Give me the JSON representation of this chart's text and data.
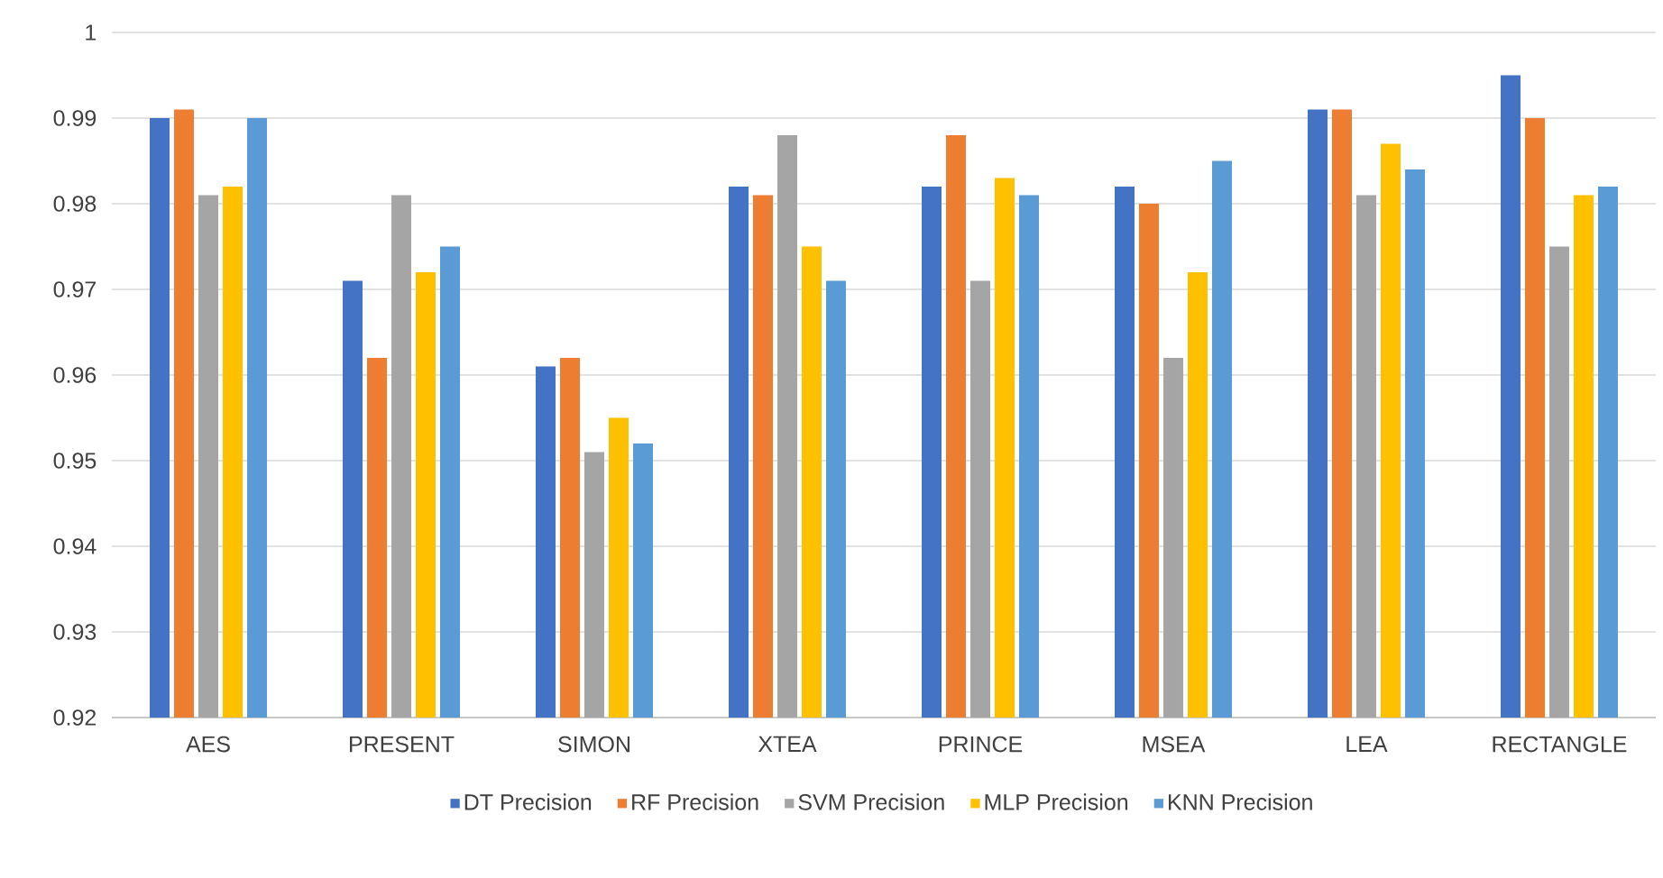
{
  "chart_data": {
    "type": "bar",
    "categories": [
      "AES",
      "PRESENT",
      "SIMON",
      "XTEA",
      "PRINCE",
      "MSEA",
      "LEA",
      "RECTANGLE"
    ],
    "series": [
      {
        "name": "DT Precision",
        "color": "#4472c4",
        "values": [
          0.99,
          0.971,
          0.961,
          0.982,
          0.982,
          0.982,
          0.991,
          0.995
        ]
      },
      {
        "name": "RF Precision",
        "color": "#ed7d31",
        "values": [
          0.991,
          0.962,
          0.962,
          0.981,
          0.988,
          0.98,
          0.991,
          0.99
        ]
      },
      {
        "name": "SVM Precision",
        "color": "#a5a5a5",
        "values": [
          0.981,
          0.981,
          0.951,
          0.988,
          0.971,
          0.962,
          0.981,
          0.975
        ]
      },
      {
        "name": "MLP Precision",
        "color": "#ffc000",
        "values": [
          0.982,
          0.972,
          0.955,
          0.975,
          0.983,
          0.972,
          0.987,
          0.981
        ]
      },
      {
        "name": "KNN Precision",
        "color": "#5b9bd5",
        "values": [
          0.99,
          0.975,
          0.952,
          0.971,
          0.981,
          0.985,
          0.984,
          0.982
        ]
      }
    ],
    "ylim": [
      0.92,
      1
    ],
    "yticks": [
      0.92,
      0.93,
      0.94,
      0.95,
      0.96,
      0.97,
      0.98,
      0.99,
      1
    ],
    "grid": "y",
    "legend": "bottom"
  }
}
